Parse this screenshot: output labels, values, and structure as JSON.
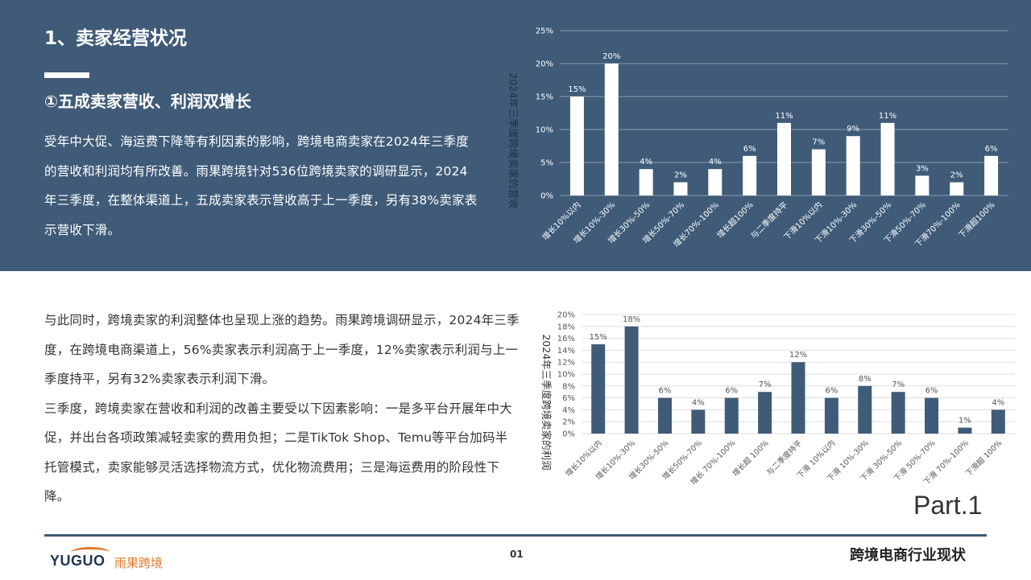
{
  "page": {
    "title": "1、卖家经营状况",
    "subtitle": "①五成卖家营收、利润双增长",
    "paragraph1": "受年中大促、海运费下降等有利因素的影响，跨境电商卖家在2024年三季度的营收和利润均有所改善。雨果跨境针对536位跨境卖家的调研显示，2024年三季度，在整体渠道上，五成卖家表示营收高于上一季度，另有38%卖家表示营收下滑。",
    "paragraph2": "与此同时，跨境卖家的利润整体也呈现上涨的趋势。雨果跨境调研显示，2024年三季度，在跨境电商渠道上，56%卖家表示利润高于上一季度，12%卖家表示利润与上一季度持平，另有32%卖家表示利润下滑。",
    "paragraph3": "三季度，跨境卖家在营收和利润的改善主要受以下因素影响：一是多平台开展年中大促，并出台各项政策减轻卖家的费用负担；二是TikTok Shop、Temu等平台加码半托管模式，卖家能够灵活选择物流方式，优化物流费用；三是海运费用的阶段性下降。",
    "part_label": "Part.1",
    "page_number": "01",
    "footer_title": "跨境电商行业现状",
    "logo_text_en": "YUGUO",
    "logo_text_cn": "雨果跨境"
  },
  "colors": {
    "band": "#3f5b78",
    "bar_revenue": "#ffffff",
    "bar_profit": "#3f5b78",
    "logo_accent": "#e07a26"
  },
  "chart_data": [
    {
      "type": "bar",
      "ylabel": "2024年三季度跨境卖家的营收",
      "categories": [
        "增长10%以内",
        "增长10%-30%",
        "增长30%-50%",
        "增长50%-70%",
        "增长70%-100%",
        "增长超100%",
        "与二季度持平",
        "下滑10%以内",
        "下滑10%-30%",
        "下滑30%-50%",
        "下滑50%-70%",
        "下滑70%-100%",
        "下滑超100%"
      ],
      "values": [
        15,
        20,
        4,
        2,
        4,
        6,
        11,
        7,
        9,
        11,
        3,
        2,
        6
      ],
      "data_labels": [
        "15%",
        "20%",
        "4%",
        "2%",
        "4%",
        "6%",
        "11%",
        "7%",
        "9%",
        "11%",
        "3%",
        "2%",
        "6%"
      ],
      "ylim": [
        0,
        25
      ],
      "yticks": [
        "0%",
        "5%",
        "10%",
        "15%",
        "20%",
        "25%"
      ],
      "grid": true
    },
    {
      "type": "bar",
      "ylabel": "2024年三季度跨境卖家的利润",
      "categories": [
        "增长10%以内",
        "增长10%-30%",
        "增长30%-50%",
        "增长50%-70%",
        "增长 70%-100%",
        "增长超 100%",
        "与二季度持平",
        "下滑 10%以内",
        "下滑 10%-30%",
        "下滑 30%-50%",
        "下滑 50%-70%",
        "下滑 70%-100%",
        "下滑超 100%"
      ],
      "values": [
        15,
        18,
        6,
        4,
        6,
        7,
        12,
        6,
        8,
        7,
        6,
        1,
        4
      ],
      "data_labels": [
        "15%",
        "18%",
        "6%",
        "4%",
        "6%",
        "7%",
        "12%",
        "6%",
        "8%",
        "7%",
        "6%",
        "1%",
        "4%"
      ],
      "ylim": [
        0,
        20
      ],
      "yticks": [
        "0%",
        "2%",
        "4%",
        "6%",
        "8%",
        "10%",
        "12%",
        "14%",
        "16%",
        "18%",
        "20%"
      ],
      "grid": true
    }
  ]
}
